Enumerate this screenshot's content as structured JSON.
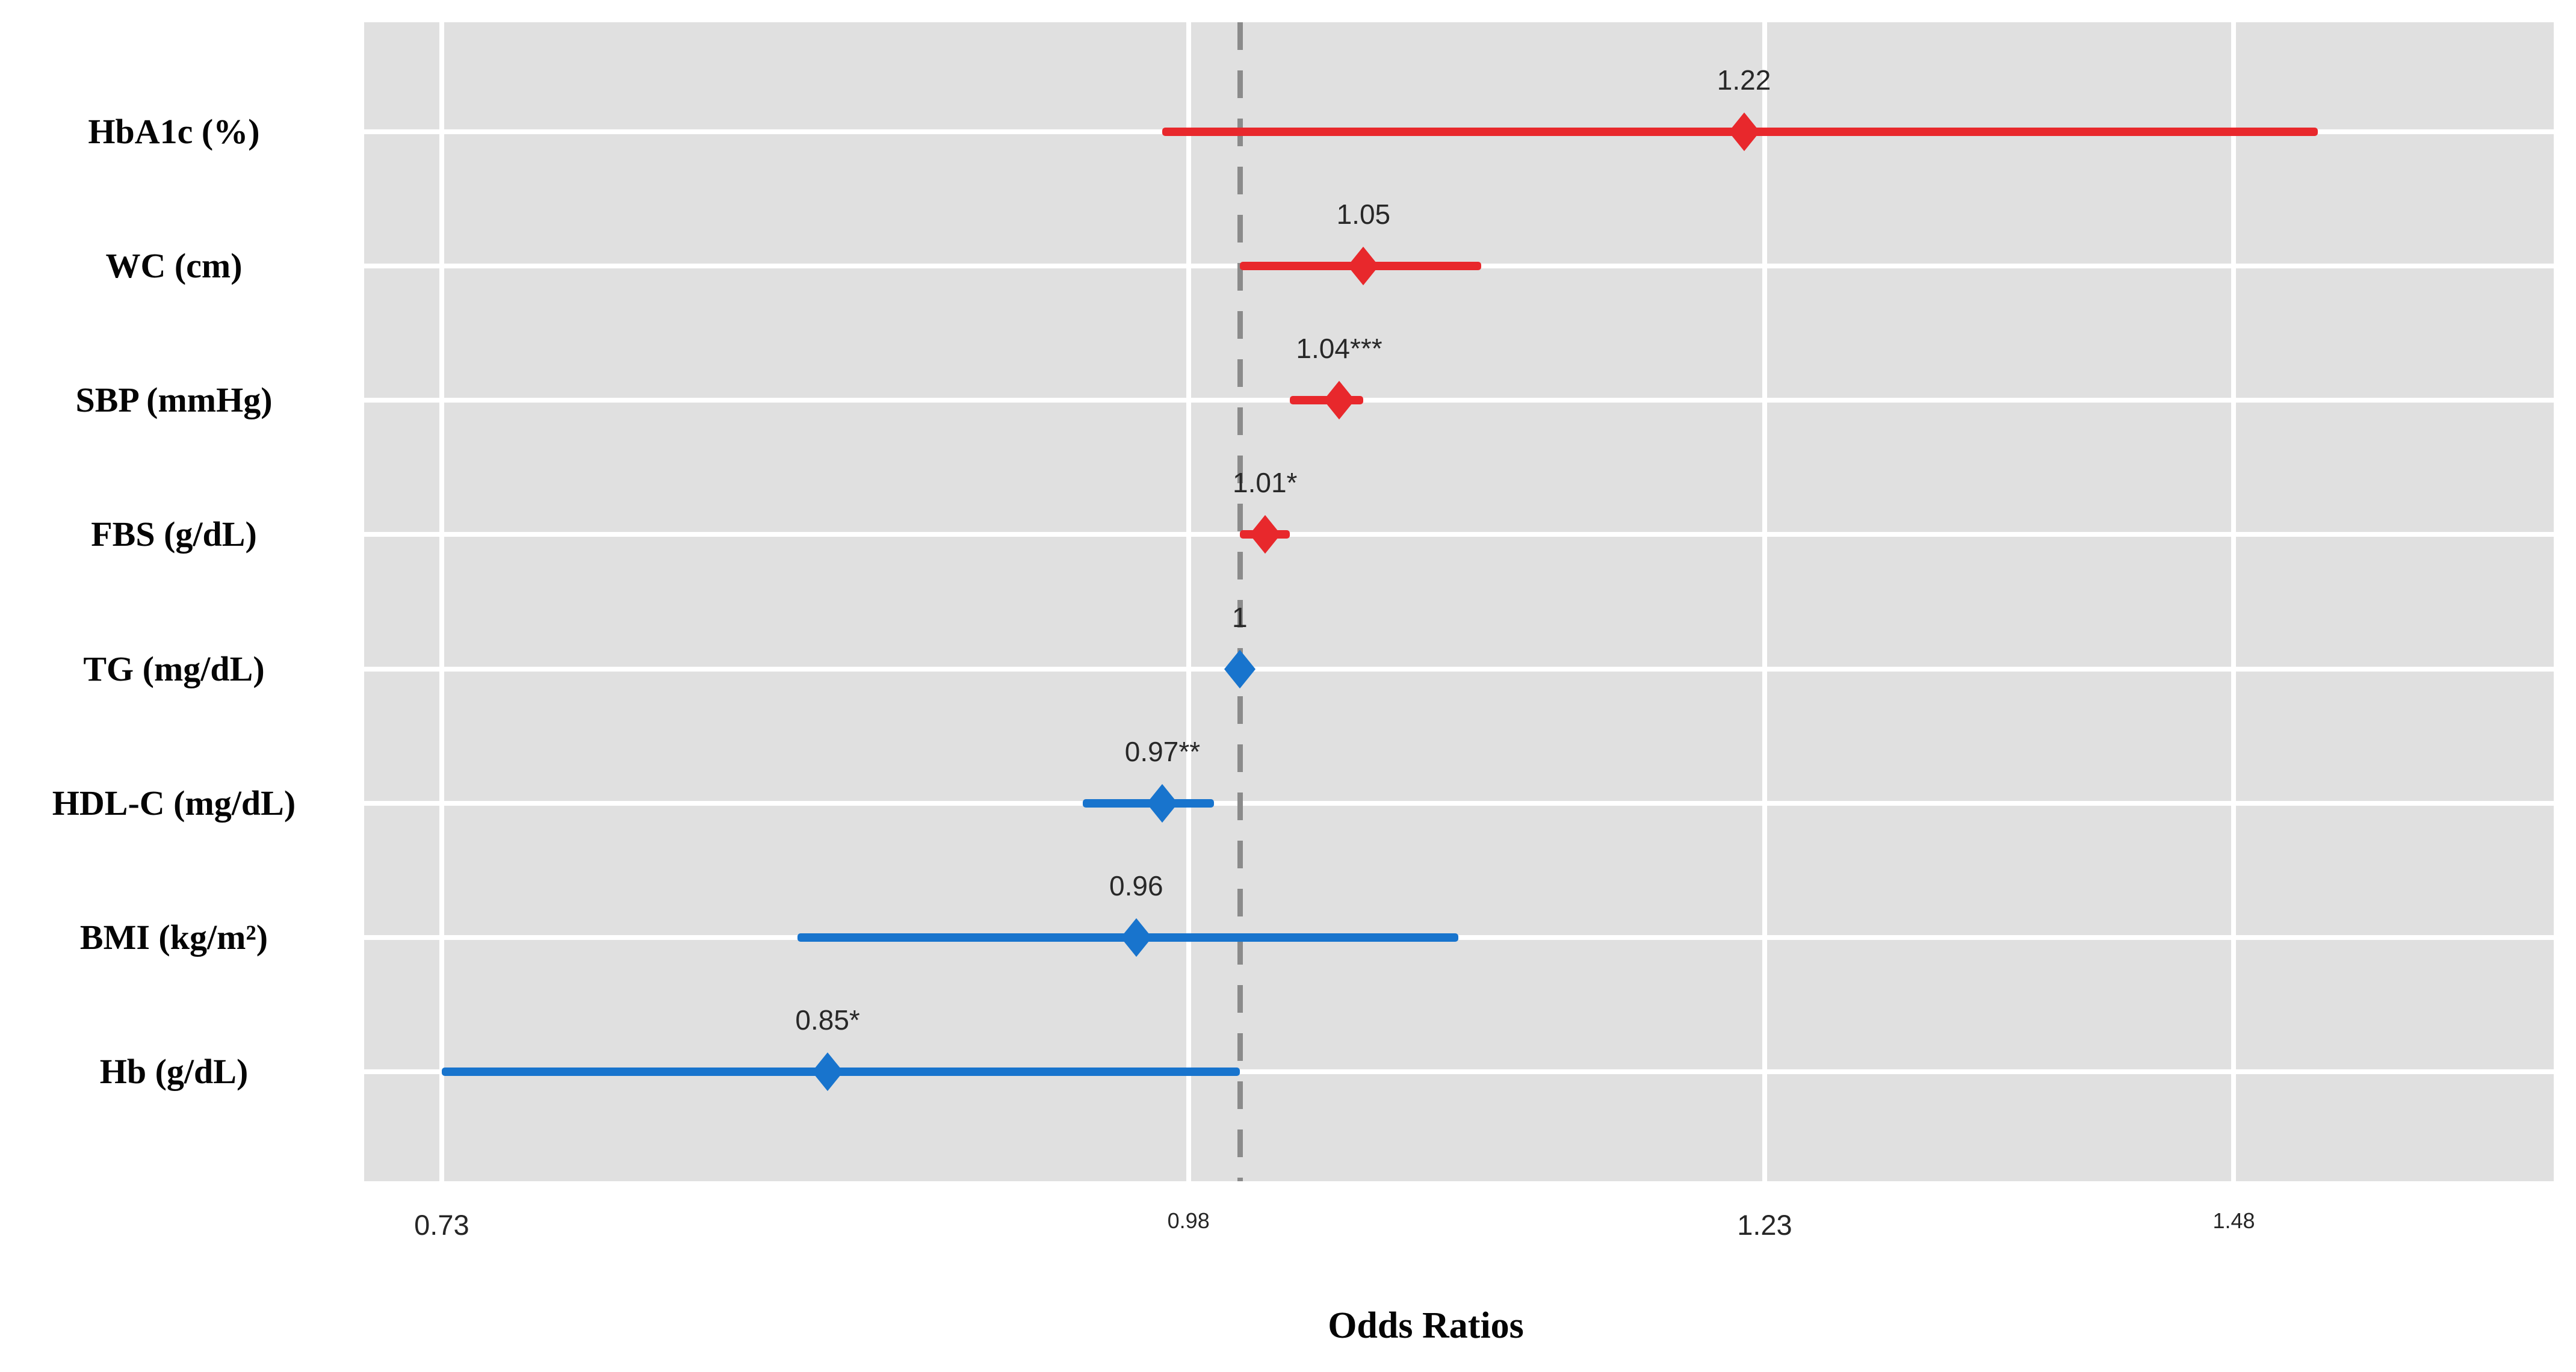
{
  "figure": {
    "background": "#ffffff",
    "plot_background": "#e0e0e0",
    "grid_color": "#ffffff"
  },
  "x_axis": {
    "title": "Odds Ratios",
    "scale": "log",
    "domain": [
      0.708,
      1.679
    ],
    "ticks": [
      {
        "label": "0.73",
        "value": 0.73,
        "size": "large"
      },
      {
        "label": "0.98",
        "value": 0.98,
        "size": "small"
      },
      {
        "label": "1.23",
        "value": 1.23,
        "size": "large"
      },
      {
        "label": "1.48",
        "value": 1.48,
        "size": "small"
      }
    ]
  },
  "reference_line": {
    "value": 1.0,
    "color": "#8b8b8b",
    "style": "dashed"
  },
  "colors": {
    "increased_risk": "#e8282c",
    "decreased_risk": "#1874cd"
  },
  "chart_data": {
    "type": "forest",
    "title": "",
    "xlabel": "Odds Ratios",
    "legend": "none",
    "categories": [
      "HbA1c (%)",
      "WC (cm)",
      "SBP (mmHg)",
      "FBS (g/dL)",
      "TG (mg/dL)",
      "HDL-C (mg/dL)",
      "BMI (kg/m²)",
      "Hb (g/dL)"
    ],
    "points": [
      {
        "category": "HbA1c (%)",
        "or": 1.22,
        "ci_low": 0.97,
        "ci_high": 1.53,
        "label": "1.22",
        "color_key": "increased_risk"
      },
      {
        "category": "WC (cm)",
        "or": 1.05,
        "ci_low": 1.0,
        "ci_high": 1.1,
        "label": "1.05",
        "color_key": "increased_risk"
      },
      {
        "category": "SBP (mmHg)",
        "or": 1.04,
        "ci_low": 1.02,
        "ci_high": 1.05,
        "label": "1.04***",
        "color_key": "increased_risk"
      },
      {
        "category": "FBS (g/dL)",
        "or": 1.01,
        "ci_low": 1.0,
        "ci_high": 1.02,
        "label": "1.01*",
        "color_key": "increased_risk"
      },
      {
        "category": "TG (mg/dL)",
        "or": 1.0,
        "ci_low": 1.0,
        "ci_high": 1.0,
        "label": "1",
        "color_key": "decreased_risk"
      },
      {
        "category": "HDL-C (mg/dL)",
        "or": 0.97,
        "ci_low": 0.94,
        "ci_high": 0.99,
        "label": "0.97**",
        "color_key": "decreased_risk"
      },
      {
        "category": "BMI (kg/m²)",
        "or": 0.96,
        "ci_low": 0.84,
        "ci_high": 1.09,
        "label": "0.96",
        "color_key": "decreased_risk"
      },
      {
        "category": "Hb (g/dL)",
        "or": 0.85,
        "ci_low": 0.73,
        "ci_high": 1.0,
        "label": "0.85*",
        "color_key": "decreased_risk"
      }
    ]
  }
}
